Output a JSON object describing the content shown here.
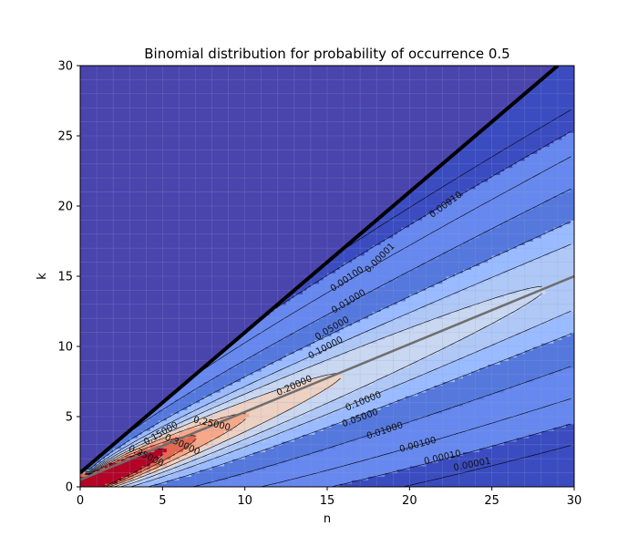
{
  "chart_data": {
    "type": "heatmap",
    "title": "Binomial distribution for probability of occurrence 0.5",
    "xlabel": "n",
    "ylabel": "k",
    "xlim": [
      0,
      30
    ],
    "ylim": [
      0,
      30
    ],
    "xticks": [
      "0",
      "5",
      "10",
      "15",
      "20",
      "25",
      "30"
    ],
    "yticks": [
      "0",
      "5",
      "10",
      "15",
      "20",
      "25",
      "30"
    ],
    "grid": true,
    "colormap": [
      "#3b4cc0",
      "#6788ee",
      "#9abbff",
      "#c9d7f0",
      "#edd1c2",
      "#f7a889",
      "#e26952",
      "#b40426"
    ],
    "background_color": "#4a44ad",
    "boundary_line": {
      "from": [
        0,
        1
      ],
      "to": [
        29,
        30
      ],
      "color": "#000000"
    },
    "mean_line": {
      "from": [
        0,
        0.5
      ],
      "to": [
        30,
        15
      ],
      "color": "#6e6e6e"
    },
    "contour_labels": [
      {
        "text": "0.00001",
        "x": 18.2,
        "y": 16.3,
        "angle": 45
      },
      {
        "text": "0.00010",
        "x": 22.2,
        "y": 20.1,
        "angle": 36
      },
      {
        "text": "0.00100",
        "x": 16.2,
        "y": 14.8,
        "angle": 34
      },
      {
        "text": "0.01000",
        "x": 16.3,
        "y": 13.2,
        "angle": 31
      },
      {
        "text": "0.05000",
        "x": 15.3,
        "y": 11.3,
        "angle": 30
      },
      {
        "text": "0.10000",
        "x": 14.9,
        "y": 9.9,
        "angle": 28
      },
      {
        "text": "0.20000",
        "x": 13.0,
        "y": 7.2,
        "angle": 24
      },
      {
        "text": "0.25000",
        "x": 8.0,
        "y": 4.5,
        "angle": -13
      },
      {
        "text": "0.15000",
        "x": 4.9,
        "y": 3.8,
        "angle": 30
      },
      {
        "text": "0.30000",
        "x": 6.2,
        "y": 3.0,
        "angle": -25
      },
      {
        "text": "0.35000",
        "x": 4.0,
        "y": 2.2,
        "angle": -25
      },
      {
        "text": "0.10000",
        "x": 17.2,
        "y": 6.1,
        "angle": 22
      },
      {
        "text": "0.05000",
        "x": 17.0,
        "y": 4.9,
        "angle": 20
      },
      {
        "text": "0.01000",
        "x": 18.5,
        "y": 4.0,
        "angle": 18
      },
      {
        "text": "0.00100",
        "x": 20.5,
        "y": 3.0,
        "angle": 15
      },
      {
        "text": "0.00010",
        "x": 22.0,
        "y": 2.1,
        "angle": 13
      },
      {
        "text": "0.00001",
        "x": 23.8,
        "y": 1.6,
        "angle": 11
      }
    ]
  }
}
